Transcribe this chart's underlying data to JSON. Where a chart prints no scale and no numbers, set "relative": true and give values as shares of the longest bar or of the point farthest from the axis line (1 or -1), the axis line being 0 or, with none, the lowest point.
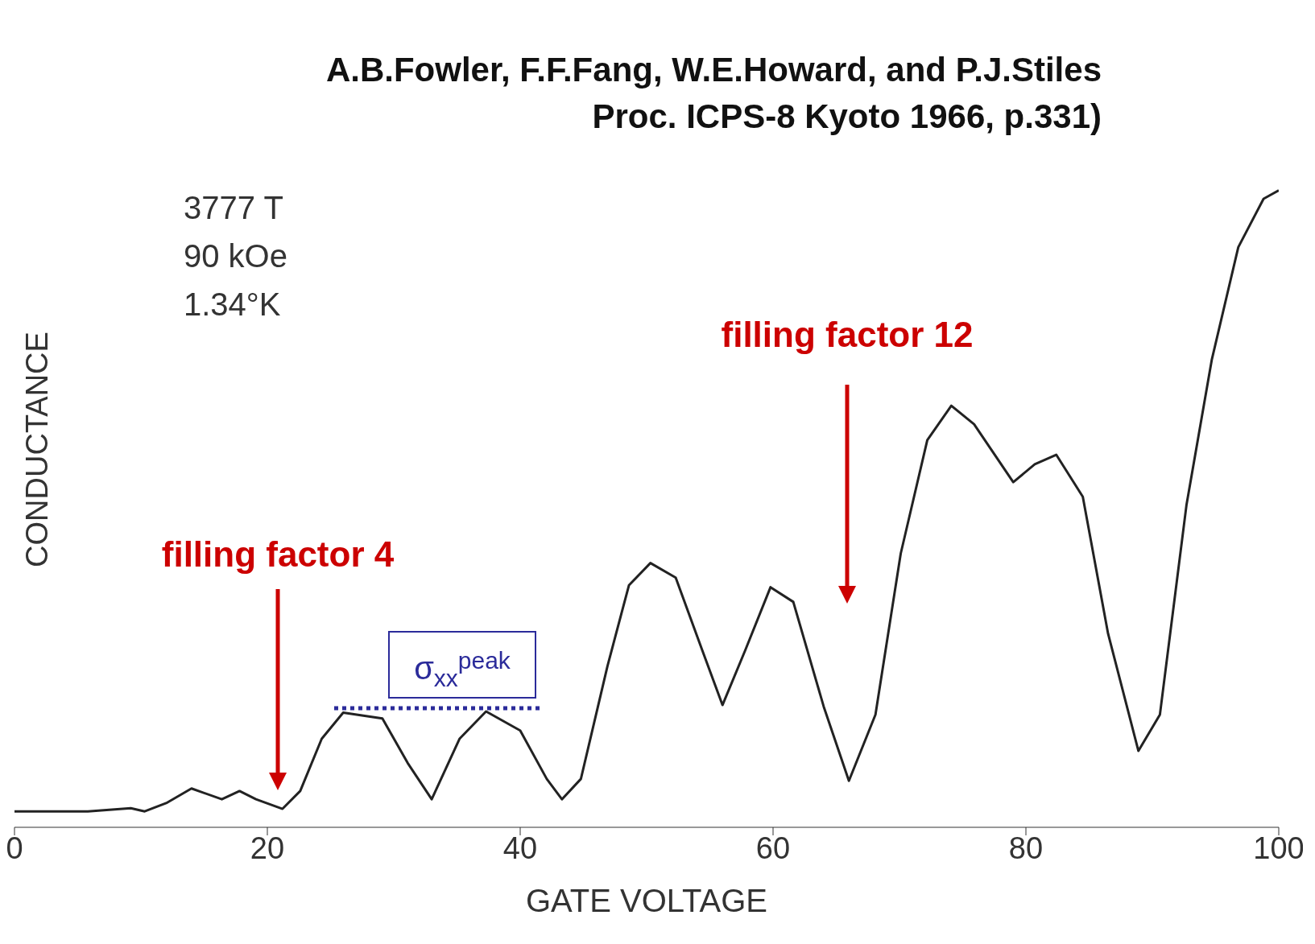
{
  "chart_data": {
    "type": "line",
    "title": "A.B.Fowler, F.F.Fang, W.E.Howard, and P.J.Stiles",
    "subtitle": "Proc. ICPS-8 Kyoto 1966, p.331)",
    "xlabel": "GATE VOLTAGE",
    "ylabel": "CONDUCTANCE",
    "relative": true,
    "xlim": [
      0,
      100
    ],
    "xticks": [
      0,
      20,
      40,
      60,
      80,
      100
    ],
    "x": [
      0,
      5.8,
      9.2,
      10.3,
      12,
      14,
      16.4,
      17.8,
      19.1,
      21.2,
      22.6,
      24.3,
      26,
      27.7,
      29.1,
      31.1,
      33,
      35.2,
      37.3,
      40,
      42.1,
      43.3,
      44.8,
      46.9,
      48.6,
      50.3,
      52.3,
      54.4,
      56,
      57.8,
      59.8,
      61.6,
      64,
      66,
      68.1,
      70.1,
      72.2,
      74.1,
      75.9,
      79,
      80.7,
      82.4,
      84.5,
      86.5,
      88.9,
      90.6,
      92.7,
      94.7,
      96.8,
      98.8,
      100
    ],
    "series": [
      {
        "color": "#222222",
        "values": [
          0.025,
          0.025,
          0.03,
          0.025,
          0.038,
          0.061,
          0.044,
          0.057,
          0.044,
          0.029,
          0.057,
          0.139,
          0.18,
          0.175,
          0.171,
          0.101,
          0.044,
          0.139,
          0.182,
          0.152,
          0.076,
          0.044,
          0.076,
          0.253,
          0.38,
          0.415,
          0.392,
          0.278,
          0.192,
          0.278,
          0.377,
          0.354,
          0.19,
          0.073,
          0.177,
          0.43,
          0.608,
          0.662,
          0.633,
          0.542,
          0.57,
          0.585,
          0.519,
          0.304,
          0.12,
          0.177,
          0.506,
          0.734,
          0.911,
          0.987,
          1
        ]
      }
    ],
    "annotations": [
      "3777 T",
      "90 kOe",
      "1.34°K",
      "filling factor 4",
      "filling factor 12",
      "σ$_{xx}$$^{peak}$"
    ]
  }
}
